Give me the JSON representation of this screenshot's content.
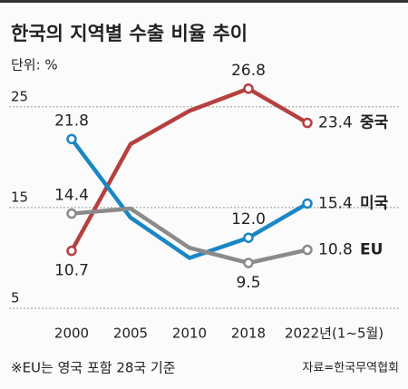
{
  "chart_data": {
    "type": "line",
    "title": "한국의 지역별 수출 비율 추이",
    "subtitle": "단위: %",
    "categories": [
      "2000",
      "2005",
      "2010",
      "2018",
      "2022년(1~5월)"
    ],
    "series": [
      {
        "name": "중국",
        "color": "#b5403f",
        "values": [
          10.7,
          21.3,
          24.6,
          26.8,
          23.4
        ],
        "value_labels": [
          "10.7",
          null,
          null,
          "26.8",
          "23.4"
        ]
      },
      {
        "name": "미국",
        "color": "#1a86c4",
        "values": [
          21.8,
          14.0,
          10.0,
          12.0,
          15.4
        ],
        "value_labels": [
          "21.8",
          null,
          null,
          "12.0",
          "15.4"
        ]
      },
      {
        "name": "EU",
        "color": "#8a8a8a",
        "values": [
          14.4,
          14.9,
          11.0,
          9.5,
          10.8
        ],
        "value_labels": [
          "14.4",
          null,
          null,
          "9.5",
          "10.8"
        ]
      }
    ],
    "ylim": [
      5,
      27.5
    ],
    "yticks": [
      5,
      15,
      25
    ],
    "grid": true,
    "notes": [
      "※EU는 영국 포함 28국 기준",
      "자료=한국무역협회"
    ]
  }
}
